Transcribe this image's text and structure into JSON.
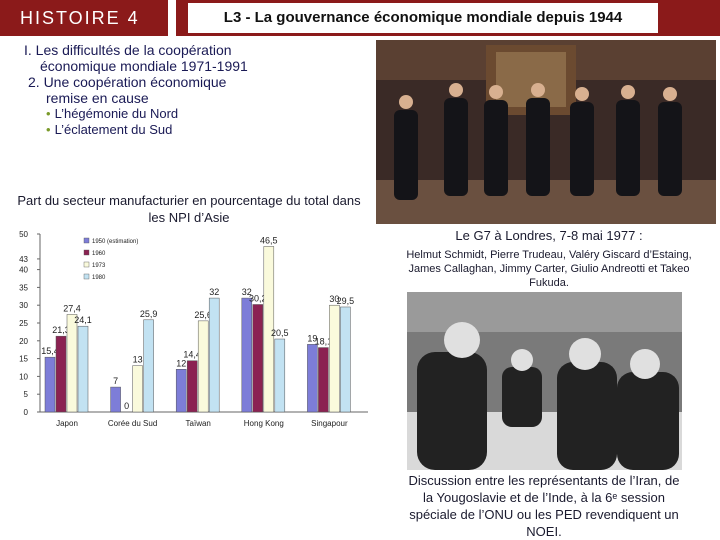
{
  "header": {
    "section": "HISTOIRE 4",
    "title": "L3 - La gouvernance économique mondiale depuis 1944"
  },
  "outline": {
    "part1_line1": "I. Les difficultés de la coopération",
    "part1_line2": "économique mondiale 1971-1991",
    "part2_line1": "2. Une coopération économique",
    "part2_line2": "remise en cause",
    "bullet1": "L’hégémonie du Nord",
    "bullet2": "L’éclatement du Sud"
  },
  "captions": {
    "g7_title": "Le G7 à Londres, 7-8 mai 1977 :",
    "g7_names": "Helmut Schmidt, Pierre Trudeau, Valéry Giscard d’Estaing, James Callaghan, Jimmy Carter, Giulio Andreotti et Takeo Fukuda.",
    "unctad": "Discussion entre les représentants de l’Iran, de la Yougoslavie et de l’Inde, à la 6ᵉ session spéciale de l’ONU ou les PED revendiquent un NOEI."
  },
  "chart_title": "Part du secteur manufacturier en pourcentage du total dans les NPI d’Asie",
  "chart_data": {
    "type": "bar",
    "categories": [
      "Japon",
      "Corée du Sud",
      "Taïwan",
      "Hong Kong",
      "Singapour"
    ],
    "series": [
      {
        "name": "1950 (estimation)",
        "values": [
          15.4,
          7,
          12,
          32,
          19
        ],
        "color": "#7d7dd8"
      },
      {
        "name": "1960",
        "values": [
          21.3,
          0,
          14.4,
          30.2,
          18.1
        ],
        "color": "#8b2252"
      },
      {
        "name": "1973",
        "values": [
          27.4,
          13,
          25.6,
          46.5,
          30
        ],
        "color": "#fafadc"
      },
      {
        "name": "1980",
        "values": [
          24.1,
          25.9,
          32,
          20.5,
          29.5
        ],
        "color": "#c2e2f2"
      }
    ],
    "data_labels": [
      [
        "15,4",
        "21,3",
        "27,4",
        "24,1"
      ],
      [
        "7",
        "0",
        "13",
        "25,9"
      ],
      [
        "12",
        "14,4",
        "25,6",
        "32"
      ],
      [
        "32",
        "30,2",
        "46,5",
        "20,5"
      ],
      [
        "19",
        "18,1",
        "30",
        "29,5"
      ]
    ],
    "ylim": [
      0,
      50
    ],
    "yticks": [
      0,
      5,
      10,
      15,
      20,
      25,
      30,
      35,
      40,
      43,
      50
    ],
    "legend_position": "top-left",
    "grid": false
  },
  "images": {
    "photo1": "G7 leaders group photo",
    "photo2": "UN session discussion photo"
  }
}
